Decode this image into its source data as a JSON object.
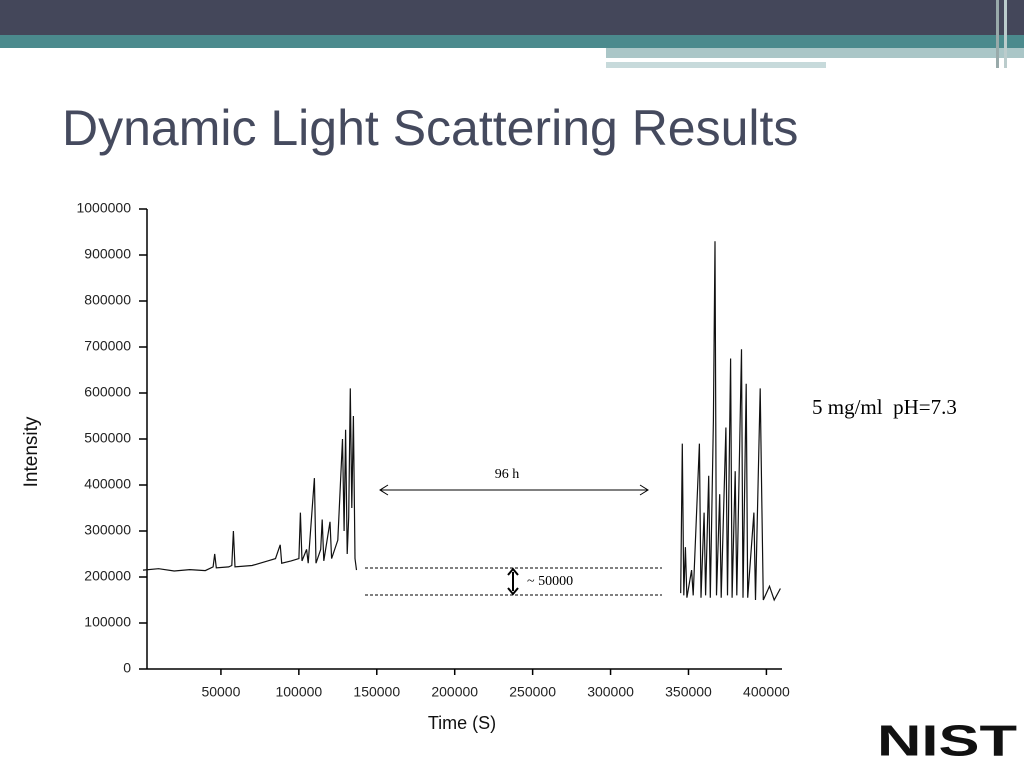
{
  "chart_data": {
    "type": "line",
    "title": "Dynamic Light Scattering Results",
    "xlabel": "Time (S)",
    "ylabel": "Intensity",
    "annotations": [
      "96 h",
      "~ 50000",
      "5 mg/ml  pH=7.3"
    ],
    "x": [
      0,
      10000,
      20000,
      30000,
      40000,
      45000,
      46000,
      47000,
      55000,
      57000,
      58000,
      59000,
      70000,
      80000,
      85000,
      88000,
      89000,
      95000,
      100000,
      101000,
      102000,
      105000,
      106000,
      110000,
      111000,
      114000,
      115000,
      116000,
      120000,
      121000,
      125000,
      128000,
      129000,
      130000,
      131000,
      132000,
      133000,
      134000,
      135000,
      136000,
      137000,
      240000,
      345000,
      346000,
      347000,
      348000,
      349000,
      352000,
      353000,
      357000,
      358000,
      360000,
      361000,
      363000,
      364000,
      366000,
      367000,
      368000,
      370000,
      371000,
      374000,
      375000,
      377000,
      378000,
      380000,
      381000,
      384000,
      385000,
      387000,
      388000,
      392000,
      393000,
      396000,
      397000,
      398000,
      402000,
      405000,
      409000
    ],
    "series": [
      {
        "name": "Intensity",
        "color": "#111111",
        "values": [
          215000,
          218000,
          213000,
          216000,
          214000,
          222000,
          250000,
          220000,
          222000,
          225000,
          300000,
          222000,
          225000,
          235000,
          240000,
          270000,
          230000,
          235000,
          240000,
          340000,
          235000,
          260000,
          230000,
          415000,
          230000,
          260000,
          325000,
          235000,
          320000,
          240000,
          280000,
          500000,
          300000,
          520000,
          250000,
          330000,
          610000,
          350000,
          550000,
          240000,
          215000,
          null,
          165000,
          490000,
          160000,
          265000,
          155000,
          215000,
          160000,
          490000,
          155000,
          340000,
          160000,
          420000,
          155000,
          540000,
          930000,
          160000,
          380000,
          155000,
          525000,
          160000,
          675000,
          155000,
          430000,
          160000,
          695000,
          155000,
          620000,
          155000,
          340000,
          150000,
          610000,
          380000,
          150000,
          180000,
          150000,
          175000
        ]
      }
    ],
    "xlim": [
      0,
      410000
    ],
    "xticks": [
      50000,
      100000,
      150000,
      200000,
      250000,
      300000,
      350000,
      400000
    ],
    "ylim": [
      0,
      1000000
    ],
    "yticks": [
      0,
      100000,
      200000,
      300000,
      400000,
      500000,
      600000,
      700000,
      800000,
      900000,
      1000000
    ]
  },
  "logo": "NIST"
}
